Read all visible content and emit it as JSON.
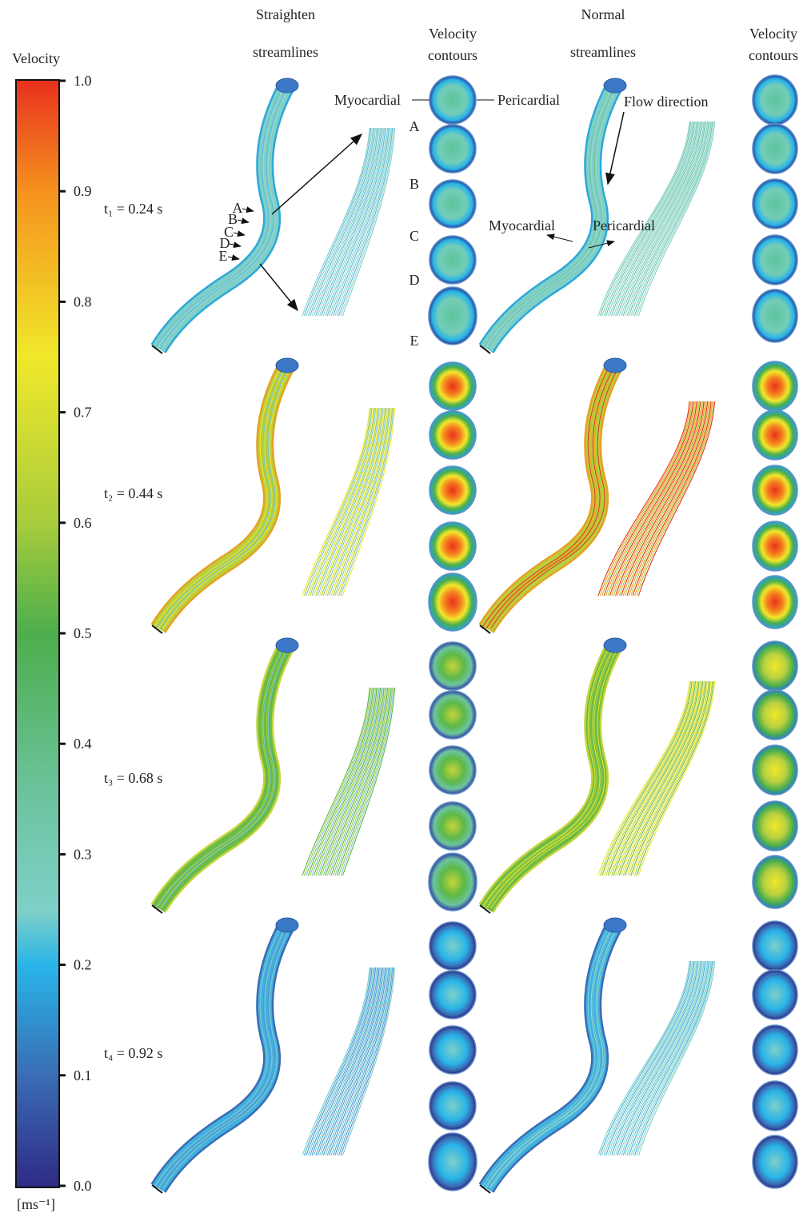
{
  "colorbar": {
    "title": "Velocity",
    "unit": "[ms⁻¹]",
    "ticks": [
      "1.0",
      "0.9",
      "0.8",
      "0.7",
      "0.6",
      "0.5",
      "0.4",
      "0.3",
      "0.2",
      "0.1",
      "0.0"
    ]
  },
  "headers": {
    "straighten": [
      "Straighten",
      "streamlines"
    ],
    "contours_left": [
      "Velocity",
      "contours"
    ],
    "normal": [
      "Normal",
      "streamlines"
    ],
    "contours_right": [
      "Velocity",
      "contours"
    ]
  },
  "times": [
    "t₁ = 0.24 s",
    "t₂ = 0.44 s",
    "t₃ = 0.68 s",
    "t₄ = 0.92 s"
  ],
  "annotations": {
    "myocardial_left": "Myocardial",
    "pericardial_left": "Pericardial",
    "sections": [
      "A",
      "B",
      "C",
      "D",
      "E"
    ],
    "tube_sections": [
      "A",
      "B",
      "C",
      "D",
      "E"
    ],
    "flow_direction": "Flow direction",
    "myocardial_right": "Myocardial",
    "pericardial_right": "Pericardial"
  }
}
